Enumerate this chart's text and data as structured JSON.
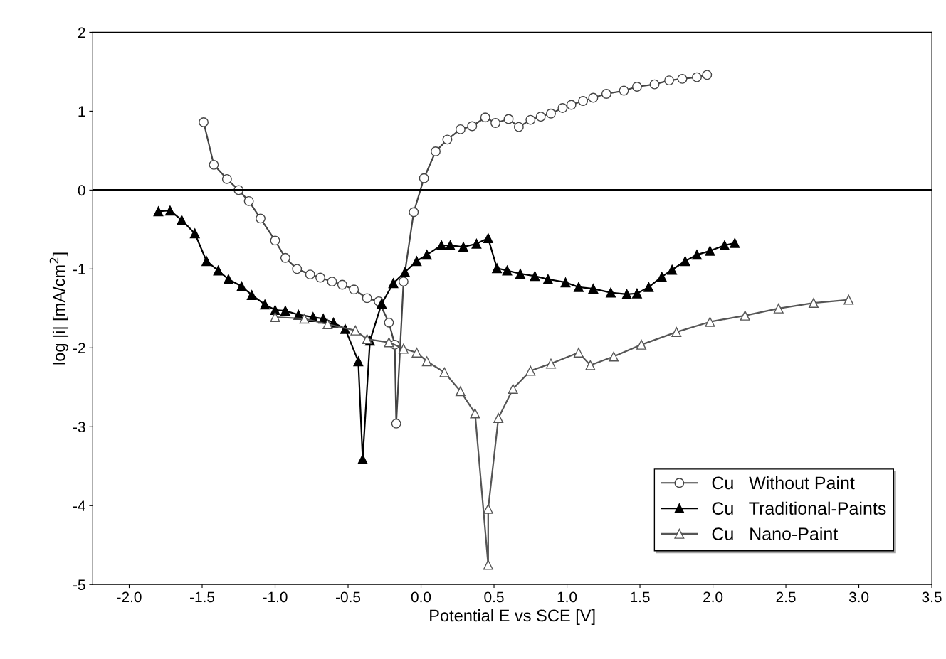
{
  "chart_data": {
    "type": "line",
    "xlabel": "Potential E vs SCE [V]",
    "ylabel": "log |i| [mA/cm$^{2}$]",
    "xlim": [
      -2.25,
      3.5
    ],
    "xticks": [
      {
        "value": -2,
        "label": "-2.0"
      },
      {
        "value": -1.5,
        "label": "-1.5"
      },
      {
        "value": -1,
        "label": "-1.0"
      },
      {
        "value": -0.5,
        "label": "-0.5"
      },
      {
        "value": 0,
        "label": "0.0"
      },
      {
        "value": 0.5,
        "label": "0.5"
      },
      {
        "value": 1,
        "label": "1.0"
      },
      {
        "value": 1.5,
        "label": "1.5"
      },
      {
        "value": 2,
        "label": "2.0"
      },
      {
        "value": 2.5,
        "label": "2.5"
      },
      {
        "value": 3,
        "label": "3.0"
      },
      {
        "value": 3.5,
        "label": "3.5"
      }
    ],
    "ylim": [
      -5,
      2
    ],
    "yticks": [
      -5,
      -4,
      -3,
      -2,
      -1,
      0,
      1,
      2
    ],
    "grid": false,
    "legend": "bottom right",
    "line_style": "solid",
    "ref_lines": [
      {
        "axis": "y",
        "value": 0,
        "label": null,
        "color": "#000000"
      }
    ],
    "series": [
      {
        "name": "Cu   Without Paint",
        "color": "#444444",
        "marker": "circle",
        "x": [
          -1.49,
          -1.42,
          -1.33,
          -1.25,
          -1.18,
          -1.1,
          -1.0,
          -0.93,
          -0.85,
          -0.76,
          -0.69,
          -0.61,
          -0.54,
          -0.46,
          -0.37,
          -0.29,
          -0.22,
          -0.18,
          -0.17,
          -0.12,
          -0.05,
          0.02,
          0.1,
          0.18,
          0.27,
          0.35,
          0.44,
          0.51,
          0.6,
          0.67,
          0.75,
          0.82,
          0.89,
          0.97,
          1.03,
          1.11,
          1.18,
          1.27,
          1.39,
          1.48,
          1.6,
          1.7,
          1.79,
          1.89,
          1.96
        ],
        "values": [
          0.86,
          0.32,
          0.14,
          0.0,
          -0.14,
          -0.36,
          -0.64,
          -0.86,
          -1.0,
          -1.07,
          -1.11,
          -1.16,
          -1.2,
          -1.26,
          -1.37,
          -1.41,
          -1.68,
          -1.96,
          -2.96,
          -1.16,
          -0.28,
          0.15,
          0.49,
          0.64,
          0.77,
          0.81,
          0.92,
          0.85,
          0.9,
          0.8,
          0.89,
          0.93,
          0.97,
          1.04,
          1.08,
          1.13,
          1.17,
          1.22,
          1.26,
          1.31,
          1.34,
          1.39,
          1.41,
          1.43,
          1.46
        ]
      },
      {
        "name": "Cu   Traditional-Paints",
        "color": "#000000",
        "marker": "triangle",
        "x": [
          -1.8,
          -1.72,
          -1.64,
          -1.55,
          -1.47,
          -1.39,
          -1.32,
          -1.23,
          -1.16,
          -1.07,
          -1.0,
          -0.93,
          -0.84,
          -0.74,
          -0.67,
          -0.6,
          -0.52,
          -0.43,
          -0.4,
          -0.35,
          -0.27,
          -0.19,
          -0.11,
          -0.03,
          0.04,
          0.14,
          0.2,
          0.29,
          0.38,
          0.46,
          0.52,
          0.59,
          0.68,
          0.78,
          0.87,
          0.99,
          1.08,
          1.18,
          1.3,
          1.41,
          1.48,
          1.56,
          1.65,
          1.72,
          1.81,
          1.89,
          1.98,
          2.08,
          2.15
        ],
        "values": [
          -0.27,
          -0.26,
          -0.38,
          -0.55,
          -0.9,
          -1.02,
          -1.13,
          -1.22,
          -1.33,
          -1.45,
          -1.52,
          -1.53,
          -1.58,
          -1.61,
          -1.63,
          -1.68,
          -1.76,
          -2.17,
          -3.41,
          -1.91,
          -1.44,
          -1.18,
          -1.04,
          -0.9,
          -0.82,
          -0.7,
          -0.7,
          -0.72,
          -0.68,
          -0.61,
          -0.99,
          -1.02,
          -1.06,
          -1.09,
          -1.13,
          -1.17,
          -1.23,
          -1.25,
          -1.3,
          -1.32,
          -1.31,
          -1.23,
          -1.1,
          -1.01,
          -0.9,
          -0.82,
          -0.77,
          -0.7,
          -0.67
        ]
      },
      {
        "name": "Cu   Nano-Paint",
        "color": "#555555",
        "marker": "triangle",
        "x": [
          -1.0,
          -0.8,
          -0.64,
          -0.45,
          -0.37,
          -0.22,
          -0.12,
          -0.03,
          0.04,
          0.16,
          0.27,
          0.37,
          0.46,
          0.46,
          0.53,
          0.63,
          0.75,
          0.89,
          1.08,
          1.16,
          1.32,
          1.51,
          1.75,
          1.98,
          2.22,
          2.45,
          2.69,
          2.93
        ],
        "values": [
          -1.61,
          -1.63,
          -1.7,
          -1.78,
          -1.89,
          -1.93,
          -2.01,
          -2.06,
          -2.17,
          -2.31,
          -2.55,
          -2.83,
          -4.75,
          -4.04,
          -2.89,
          -2.52,
          -2.29,
          -2.2,
          -2.06,
          -2.22,
          -2.11,
          -1.96,
          -1.8,
          -1.67,
          -1.59,
          -1.5,
          -1.43,
          -1.39
        ]
      }
    ]
  }
}
